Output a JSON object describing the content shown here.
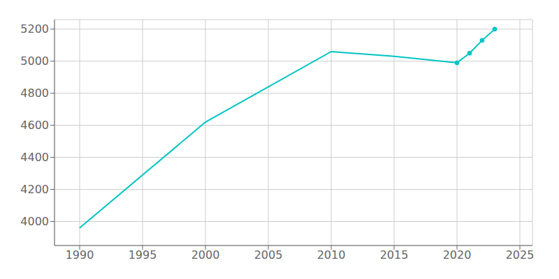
{
  "chart_data": {
    "type": "line",
    "x": [
      1990,
      2000,
      2010,
      2015,
      2020,
      2021,
      2022,
      2023
    ],
    "series": [
      {
        "type": "line",
        "color": "#00c4c4",
        "values": [
          3960,
          4620,
          5060,
          5030,
          4990,
          5050,
          5130,
          5200
        ]
      },
      {
        "type": "scatter",
        "color": "#00c4c4",
        "marker": "circle",
        "values": [
          null,
          null,
          null,
          null,
          4990,
          5050,
          5130,
          5200
        ]
      }
    ],
    "xlim": [
      1988,
      2026
    ],
    "ylim": [
      3850,
      5260
    ],
    "xticks": [
      1990,
      1995,
      2000,
      2005,
      2010,
      2015,
      2020,
      2025
    ],
    "yticks": [
      4000,
      4200,
      4400,
      4600,
      4800,
      5000,
      5200
    ],
    "grid": true
  }
}
